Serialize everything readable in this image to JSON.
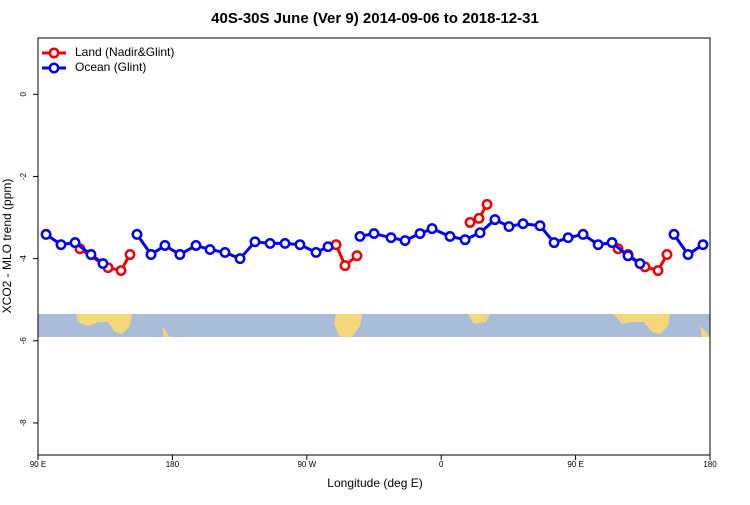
{
  "chart_data": {
    "type": "line",
    "title": "40S-30S June (Ver 9)   2014-09-06 to 2018-12-31",
    "x_label": "Longitude (deg E)",
    "y_label": "XCO2 - MLO trend (ppm)",
    "xlim": [
      90,
      540
    ],
    "xticks": [
      {
        "value": 90,
        "label": "90 E"
      },
      180,
      {
        "value": 270,
        "label": "90 W"
      },
      {
        "value": 360,
        "label": "0"
      },
      {
        "value": 450,
        "label": "90 E"
      },
      {
        "value": 540,
        "label": "180"
      }
    ],
    "ylim": [
      1.37,
      -8.78
    ],
    "yticks": [
      0,
      -2,
      -4,
      -6,
      -8
    ],
    "legend": "top-left",
    "series": [
      {
        "name": "Land (Nadir&Glint)",
        "color": "#ee0000",
        "x": [
          118.1,
          136.9,
          145.6,
          151.6,
          null,
          289.6,
          295.6,
          303.6,
          null,
          379.3,
          385.3,
          390.7,
          null,
          478.4,
          485.1,
          496.5,
          505.2,
          511.2
        ],
        "values": [
          -3.76,
          -4.22,
          -4.29,
          -3.9,
          null,
          -3.66,
          -4.17,
          -3.93,
          null,
          -3.12,
          -3.02,
          -2.68,
          null,
          -3.76,
          -3.9,
          -4.2,
          -4.29,
          -3.9
        ]
      },
      {
        "name": "Ocean (Glint)",
        "color": "#0000ee",
        "x": [
          95.4,
          105.4,
          114.8,
          125.5,
          133.5,
          null,
          156.3,
          165.7,
          175,
          185,
          195.8,
          205.2,
          215.2,
          225.3,
          235.3,
          245.4,
          255.4,
          265.4,
          276.2,
          284.2,
          null,
          305.6,
          315,
          326.4,
          335.8,
          345.8,
          353.9,
          365.9,
          376,
          386,
          396,
          405.4,
          414.8,
          426.2,
          435.6,
          445,
          455,
          465.1,
          474.4,
          485.1,
          493.1,
          null,
          515.9,
          525.3,
          535.3
        ],
        "values": [
          -3.41,
          -3.66,
          -3.61,
          -3.9,
          -4.12,
          null,
          -3.41,
          -3.9,
          -3.68,
          -3.9,
          -3.68,
          -3.78,
          -3.85,
          -4.0,
          -3.59,
          -3.63,
          -3.63,
          -3.66,
          -3.85,
          -3.71,
          null,
          -3.46,
          -3.39,
          -3.49,
          -3.56,
          -3.39,
          -3.27,
          -3.46,
          -3.54,
          -3.37,
          -3.05,
          -3.22,
          -3.15,
          -3.2,
          -3.61,
          -3.49,
          -3.41,
          -3.66,
          -3.61,
          -3.93,
          -4.12,
          null,
          -3.41,
          -3.9,
          -3.66
        ]
      }
    ]
  }
}
